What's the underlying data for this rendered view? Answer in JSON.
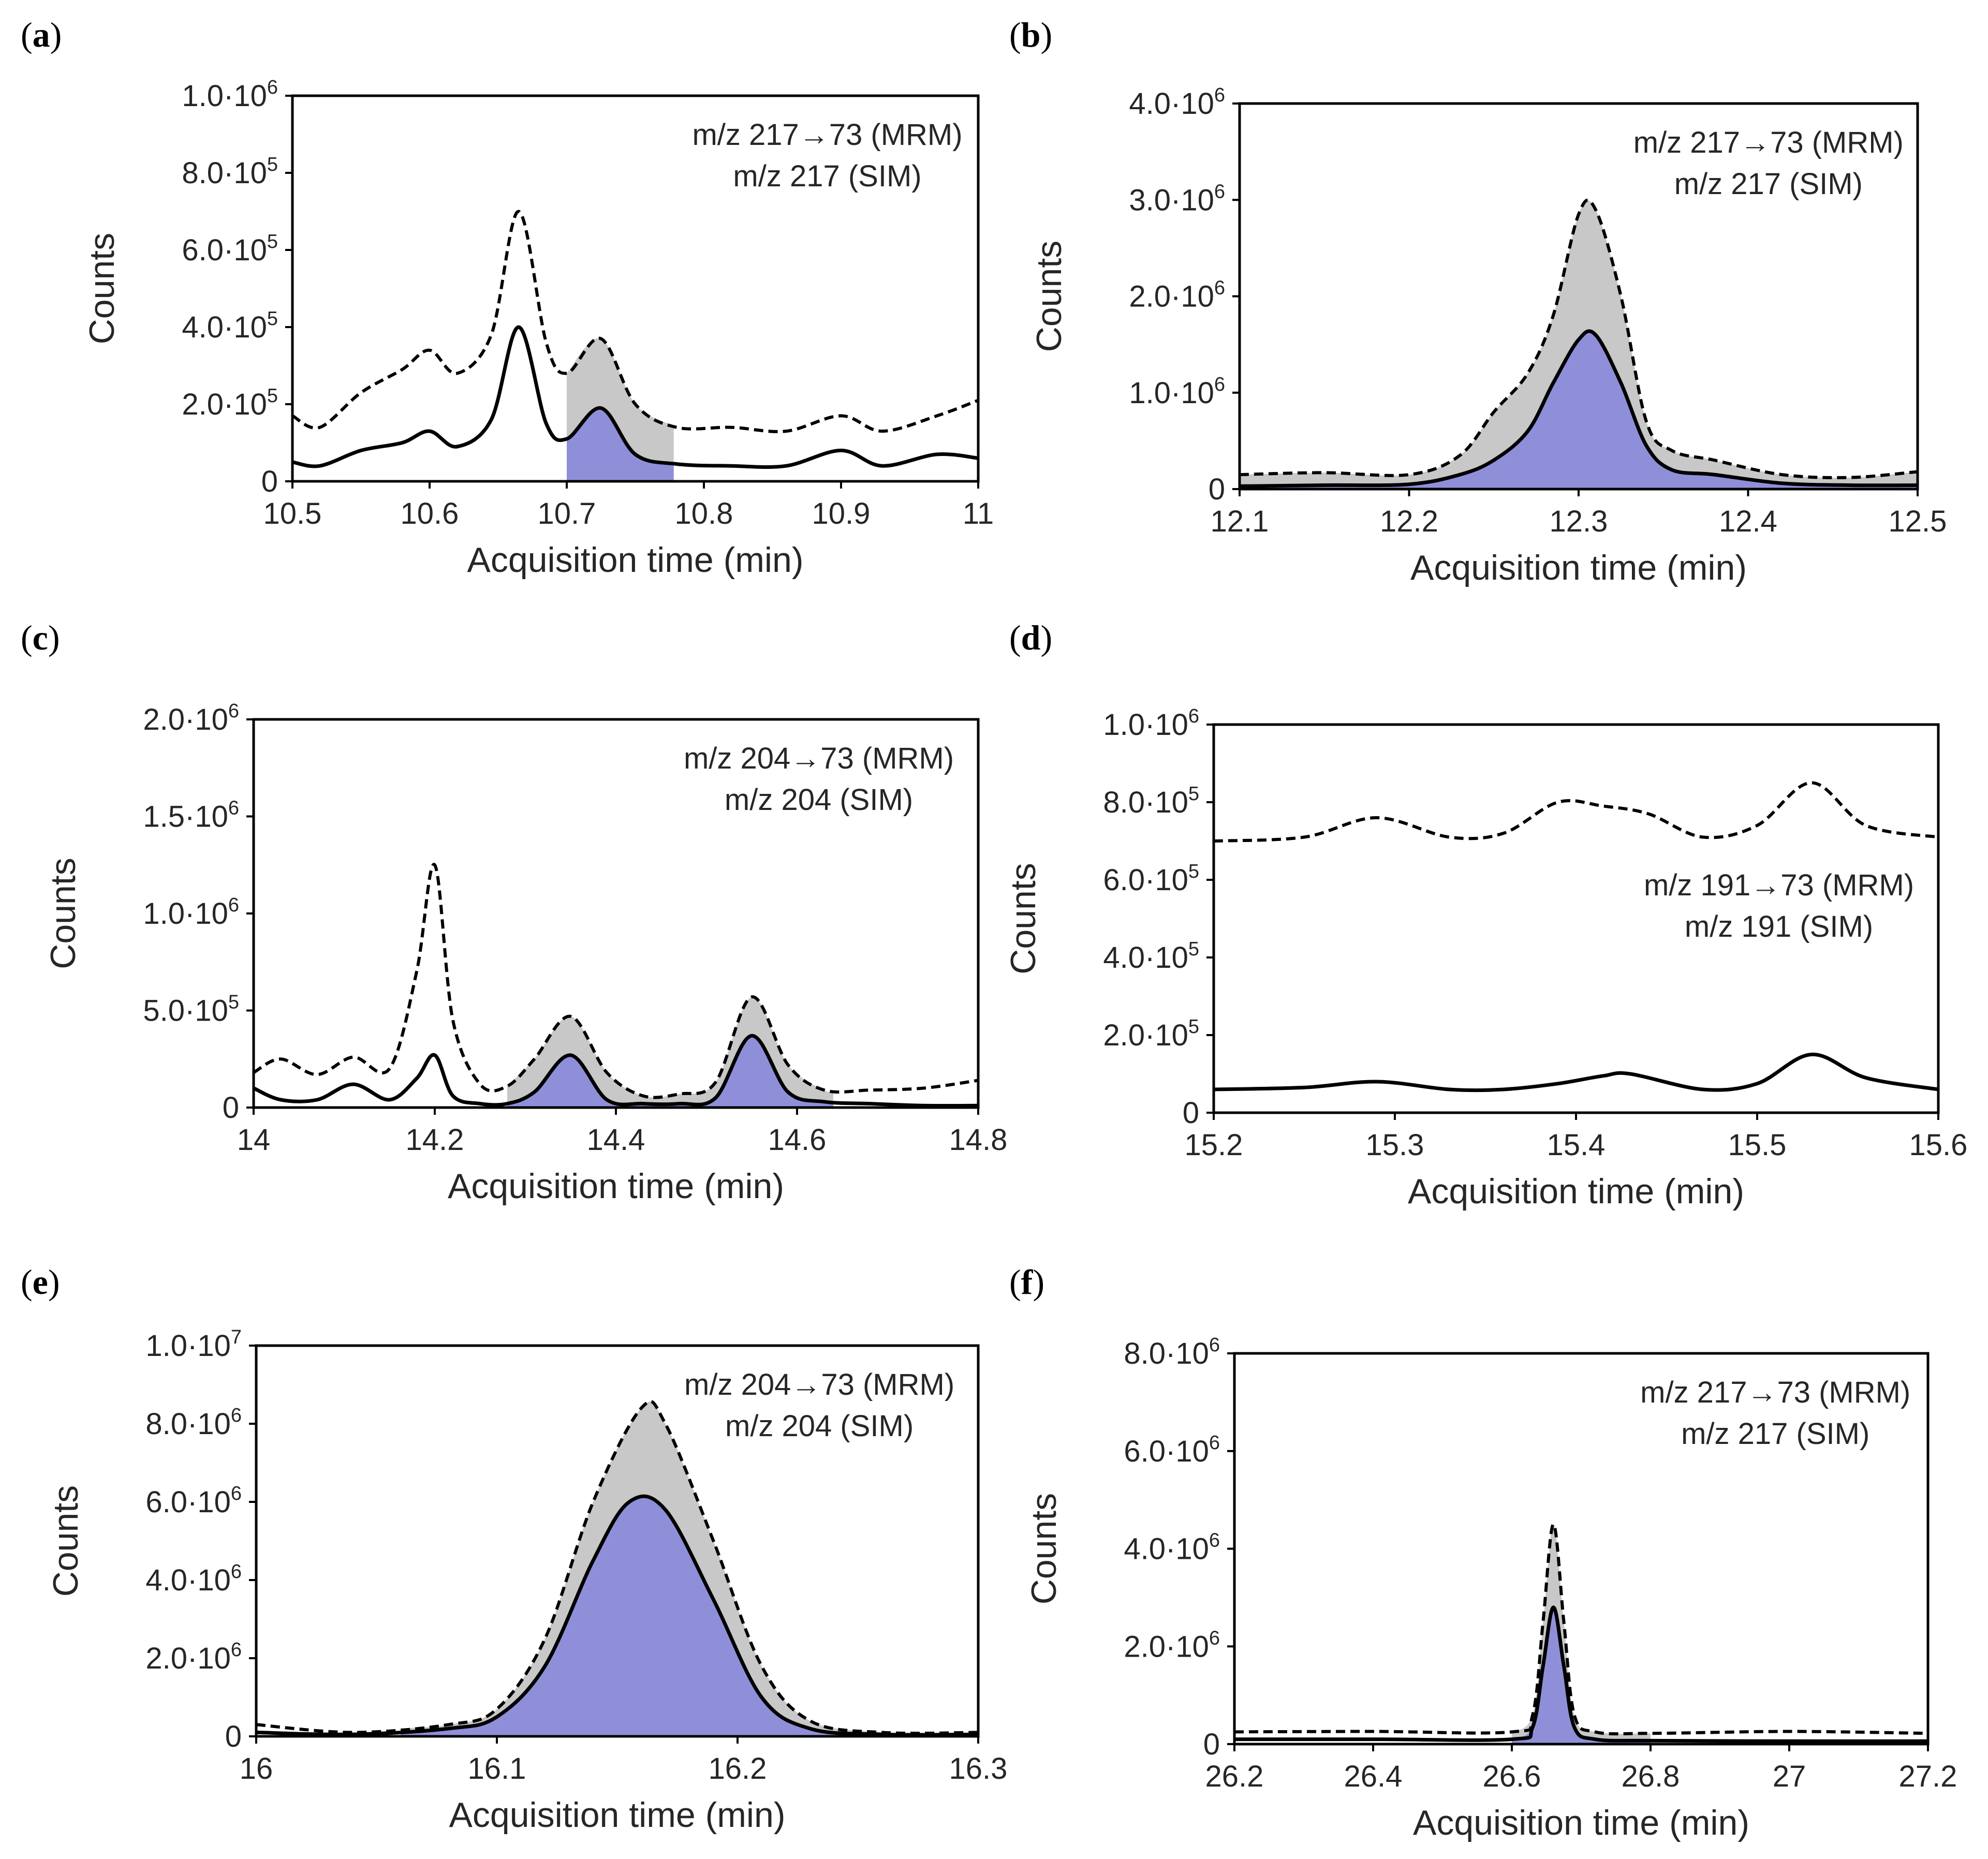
{
  "colors": {
    "mrm_fill": "#8f8fd9",
    "sim_fill": "#c8c8c8",
    "line": "#000000",
    "axis": "#000000",
    "text": "#262626"
  },
  "chart_data": [
    {
      "panel": "a",
      "type": "line",
      "xlabel": "Acquisition time (min)",
      "ylabel": "Counts",
      "xlim": [
        10.5,
        11.0
      ],
      "ylim": [
        0,
        1000000
      ],
      "xticks": [
        10.5,
        10.6,
        10.7,
        10.8,
        10.9,
        11.0
      ],
      "xtick_labels": [
        "10.5",
        "10.6",
        "10.7",
        "10.8",
        "10.9",
        "11"
      ],
      "yticks": [
        {
          "value": 0,
          "mantissa": "0",
          "exp": ""
        },
        {
          "value": 200000,
          "mantissa": "2.0·10",
          "exp": "5"
        },
        {
          "value": 400000,
          "mantissa": "4.0·10",
          "exp": "5"
        },
        {
          "value": 600000,
          "mantissa": "6.0·10",
          "exp": "5"
        },
        {
          "value": 800000,
          "mantissa": "8.0·10",
          "exp": "5"
        },
        {
          "value": 1000000,
          "mantissa": "1.0·10",
          "exp": "6"
        }
      ],
      "legend": [
        "m/z 217→73 (MRM)",
        "m/z 217 (SIM)"
      ],
      "legend_position": "top-right",
      "series": [
        {
          "name": "m/z 217 (SIM)",
          "style": "dashed",
          "x": [
            10.5,
            10.52,
            10.55,
            10.58,
            10.6,
            10.62,
            10.645,
            10.665,
            10.685,
            10.7,
            10.725,
            10.75,
            10.78,
            10.82,
            10.86,
            10.9,
            10.93,
            10.97,
            11.0
          ],
          "y": [
            170000,
            140000,
            230000,
            290000,
            340000,
            280000,
            380000,
            700000,
            360000,
            280000,
            370000,
            200000,
            140000,
            140000,
            130000,
            170000,
            130000,
            170000,
            210000
          ]
        },
        {
          "name": "m/z 217→73 (MRM)",
          "style": "solid",
          "x": [
            10.5,
            10.52,
            10.55,
            10.58,
            10.6,
            10.62,
            10.645,
            10.665,
            10.685,
            10.7,
            10.725,
            10.75,
            10.78,
            10.82,
            10.86,
            10.9,
            10.93,
            10.97,
            11.0
          ],
          "y": [
            50000,
            40000,
            80000,
            100000,
            130000,
            90000,
            160000,
            400000,
            150000,
            110000,
            190000,
            70000,
            45000,
            40000,
            40000,
            80000,
            40000,
            70000,
            60000
          ]
        }
      ],
      "shaded_range": [
        10.7,
        10.778
      ]
    },
    {
      "panel": "b",
      "type": "line",
      "xlabel": "Acquisition time (min)",
      "ylabel": "Counts",
      "xlim": [
        12.1,
        12.5
      ],
      "ylim": [
        0,
        4000000
      ],
      "xticks": [
        12.1,
        12.2,
        12.3,
        12.4,
        12.5
      ],
      "xtick_labels": [
        "12.1",
        "12.2",
        "12.3",
        "12.4",
        "12.5"
      ],
      "yticks": [
        {
          "value": 0,
          "mantissa": "0",
          "exp": ""
        },
        {
          "value": 1000000,
          "mantissa": "1.0·10",
          "exp": "6"
        },
        {
          "value": 2000000,
          "mantissa": "2.0·10",
          "exp": "6"
        },
        {
          "value": 3000000,
          "mantissa": "3.0·10",
          "exp": "6"
        },
        {
          "value": 4000000,
          "mantissa": "4.0·10",
          "exp": "6"
        }
      ],
      "legend": [
        "m/z 217→73 (MRM)",
        "m/z 217 (SIM)"
      ],
      "legend_position": "top-right",
      "series": [
        {
          "name": "m/z 217 (SIM)",
          "style": "dashed",
          "x": [
            12.1,
            12.15,
            12.2,
            12.23,
            12.25,
            12.27,
            12.285,
            12.3,
            12.31,
            12.325,
            12.34,
            12.355,
            12.38,
            12.42,
            12.46,
            12.5
          ],
          "y": [
            150000,
            170000,
            150000,
            350000,
            800000,
            1200000,
            1800000,
            2850000,
            2900000,
            2000000,
            700000,
            400000,
            300000,
            150000,
            120000,
            180000
          ]
        },
        {
          "name": "m/z 217→73 (MRM)",
          "style": "solid",
          "x": [
            12.1,
            12.15,
            12.2,
            12.23,
            12.25,
            12.27,
            12.285,
            12.3,
            12.31,
            12.325,
            12.34,
            12.355,
            12.38,
            12.42,
            12.46,
            12.5
          ],
          "y": [
            30000,
            40000,
            50000,
            150000,
            300000,
            600000,
            1100000,
            1550000,
            1600000,
            1100000,
            450000,
            200000,
            150000,
            60000,
            40000,
            40000
          ]
        }
      ],
      "shaded_range": [
        12.1,
        12.5
      ]
    },
    {
      "panel": "c",
      "type": "line",
      "xlabel": "Acquisition time (min)",
      "ylabel": "Counts",
      "xlim": [
        14.0,
        14.8
      ],
      "ylim": [
        0,
        2000000
      ],
      "xticks": [
        14.0,
        14.2,
        14.4,
        14.6,
        14.8
      ],
      "xtick_labels": [
        "14",
        "14.2",
        "14.4",
        "14.6",
        "14.8"
      ],
      "yticks": [
        {
          "value": 0,
          "mantissa": "0",
          "exp": ""
        },
        {
          "value": 500000,
          "mantissa": "5.0·10",
          "exp": "5"
        },
        {
          "value": 1000000,
          "mantissa": "1.0·10",
          "exp": "6"
        },
        {
          "value": 1500000,
          "mantissa": "1.5·10",
          "exp": "6"
        },
        {
          "value": 2000000,
          "mantissa": "2.0·10",
          "exp": "6"
        }
      ],
      "legend": [
        "m/z 204→73 (MRM)",
        "m/z 204 (SIM)"
      ],
      "legend_position": "top-right",
      "series": [
        {
          "name": "m/z 204 (SIM)",
          "style": "dashed",
          "x": [
            14.0,
            14.03,
            14.07,
            14.11,
            14.15,
            14.18,
            14.2,
            14.22,
            14.25,
            14.28,
            14.31,
            14.35,
            14.39,
            14.43,
            14.47,
            14.51,
            14.55,
            14.59,
            14.63,
            14.68,
            14.74,
            14.8
          ],
          "y": [
            180000,
            250000,
            170000,
            260000,
            200000,
            700000,
            1250000,
            450000,
            120000,
            110000,
            250000,
            470000,
            180000,
            60000,
            70000,
            130000,
            570000,
            220000,
            90000,
            90000,
            100000,
            140000
          ]
        },
        {
          "name": "m/z 204→73 (MRM)",
          "style": "solid",
          "x": [
            14.0,
            14.03,
            14.07,
            14.11,
            14.15,
            14.18,
            14.2,
            14.22,
            14.25,
            14.28,
            14.31,
            14.35,
            14.39,
            14.43,
            14.47,
            14.51,
            14.55,
            14.59,
            14.63,
            14.68,
            14.74,
            14.8
          ],
          "y": [
            100000,
            40000,
            40000,
            120000,
            40000,
            150000,
            270000,
            60000,
            20000,
            20000,
            80000,
            270000,
            40000,
            20000,
            20000,
            50000,
            370000,
            80000,
            30000,
            20000,
            10000,
            10000
          ]
        }
      ],
      "shaded_range": [
        14.28,
        14.64
      ]
    },
    {
      "panel": "d",
      "type": "line",
      "xlabel": "Acquisition time (min)",
      "ylabel": "Counts",
      "xlim": [
        15.2,
        15.6
      ],
      "ylim": [
        0,
        1000000
      ],
      "xticks": [
        15.2,
        15.3,
        15.4,
        15.5,
        15.6
      ],
      "xtick_labels": [
        "15.2",
        "15.3",
        "15.4",
        "15.5",
        "15.6"
      ],
      "yticks": [
        {
          "value": 0,
          "mantissa": "0",
          "exp": ""
        },
        {
          "value": 200000,
          "mantissa": "2.0·10",
          "exp": "5"
        },
        {
          "value": 400000,
          "mantissa": "4.0·10",
          "exp": "5"
        },
        {
          "value": 600000,
          "mantissa": "6.0·10",
          "exp": "5"
        },
        {
          "value": 800000,
          "mantissa": "8.0·10",
          "exp": "5"
        },
        {
          "value": 1000000,
          "mantissa": "1.0·10",
          "exp": "6"
        }
      ],
      "legend": [
        "m/z 191→73 (MRM)",
        "m/z 191 (SIM)"
      ],
      "legend_position": "center-right",
      "series": [
        {
          "name": "m/z 191 (SIM)",
          "style": "dashed",
          "x": [
            15.2,
            15.25,
            15.29,
            15.33,
            15.36,
            15.39,
            15.415,
            15.44,
            15.47,
            15.5,
            15.53,
            15.56,
            15.6
          ],
          "y": [
            700000,
            710000,
            760000,
            710000,
            720000,
            800000,
            790000,
            770000,
            710000,
            740000,
            850000,
            740000,
            710000
          ]
        },
        {
          "name": "m/z 191→73 (MRM)",
          "style": "solid",
          "x": [
            15.2,
            15.25,
            15.29,
            15.33,
            15.36,
            15.39,
            15.415,
            15.43,
            15.47,
            15.5,
            15.53,
            15.56,
            15.6
          ],
          "y": [
            60000,
            65000,
            80000,
            60000,
            60000,
            75000,
            95000,
            100000,
            60000,
            75000,
            150000,
            90000,
            60000
          ]
        }
      ],
      "shaded_range": null
    },
    {
      "panel": "e",
      "type": "line",
      "xlabel": "Acquisition time (min)",
      "ylabel": "Counts",
      "xlim": [
        16.0,
        16.3
      ],
      "ylim": [
        0,
        10000000
      ],
      "xticks": [
        16.0,
        16.1,
        16.2,
        16.3
      ],
      "xtick_labels": [
        "16",
        "16.1",
        "16.2",
        "16.3"
      ],
      "yticks": [
        {
          "value": 0,
          "mantissa": "0",
          "exp": ""
        },
        {
          "value": 2000000,
          "mantissa": "2.0·10",
          "exp": "6"
        },
        {
          "value": 4000000,
          "mantissa": "4.0·10",
          "exp": "6"
        },
        {
          "value": 6000000,
          "mantissa": "6.0·10",
          "exp": "6"
        },
        {
          "value": 8000000,
          "mantissa": "8.0·10",
          "exp": "6"
        },
        {
          "value": 10000000,
          "mantissa": "1.0·10",
          "exp": "7"
        }
      ],
      "legend": [
        "m/z 204→73 (MRM)",
        "m/z 204 (SIM)"
      ],
      "legend_position": "top-right",
      "series": [
        {
          "name": "m/z 204 (SIM)",
          "style": "dashed",
          "x": [
            16.0,
            16.04,
            16.08,
            16.1,
            16.12,
            16.14,
            16.16,
            16.17,
            16.19,
            16.21,
            16.23,
            16.26,
            16.3
          ],
          "y": [
            300000,
            100000,
            300000,
            700000,
            2500000,
            6000000,
            8400000,
            8000000,
            5000000,
            1800000,
            400000,
            100000,
            100000
          ]
        },
        {
          "name": "m/z 204→73 (MRM)",
          "style": "solid",
          "x": [
            16.0,
            16.04,
            16.08,
            16.1,
            16.12,
            16.14,
            16.155,
            16.17,
            16.19,
            16.21,
            16.23,
            16.26,
            16.3
          ],
          "y": [
            100000,
            50000,
            200000,
            500000,
            1800000,
            4500000,
            6000000,
            5800000,
            3500000,
            1000000,
            200000,
            50000,
            50000
          ]
        }
      ],
      "shaded_range": [
        16.06,
        16.26
      ]
    },
    {
      "panel": "f",
      "type": "line",
      "xlabel": "Acquisition time (min)",
      "ylabel": "Counts",
      "xlim": [
        26.2,
        27.2
      ],
      "ylim": [
        0,
        8000000
      ],
      "xticks": [
        26.2,
        26.4,
        26.6,
        26.8,
        27.0,
        27.2
      ],
      "xtick_labels": [
        "26.2",
        "26.4",
        "26.6",
        "26.8",
        "27",
        "27.2"
      ],
      "yticks": [
        {
          "value": 0,
          "mantissa": "0",
          "exp": ""
        },
        {
          "value": 2000000,
          "mantissa": "2.0·10",
          "exp": "6"
        },
        {
          "value": 4000000,
          "mantissa": "4.0·10",
          "exp": "6"
        },
        {
          "value": 6000000,
          "mantissa": "6.0·10",
          "exp": "6"
        },
        {
          "value": 8000000,
          "mantissa": "8.0·10",
          "exp": "6"
        }
      ],
      "legend": [
        "m/z 217→73 (MRM)",
        "m/z 217 (SIM)"
      ],
      "legend_position": "top-right",
      "series": [
        {
          "name": "m/z 217 (SIM)",
          "style": "dashed",
          "x": [
            26.2,
            26.4,
            26.6,
            26.63,
            26.645,
            26.66,
            26.675,
            26.69,
            26.72,
            26.8,
            27.0,
            27.2
          ],
          "y": [
            250000,
            260000,
            250000,
            600000,
            2500000,
            4500000,
            2500000,
            600000,
            250000,
            220000,
            260000,
            220000
          ]
        },
        {
          "name": "m/z 217→73 (MRM)",
          "style": "solid",
          "x": [
            26.2,
            26.4,
            26.6,
            26.63,
            26.645,
            26.66,
            26.675,
            26.69,
            26.72,
            26.8,
            27.0,
            27.2
          ],
          "y": [
            100000,
            100000,
            100000,
            350000,
            1600000,
            2800000,
            1600000,
            350000,
            100000,
            70000,
            60000,
            60000
          ]
        }
      ],
      "shaded_range": [
        26.6,
        26.8
      ]
    }
  ]
}
